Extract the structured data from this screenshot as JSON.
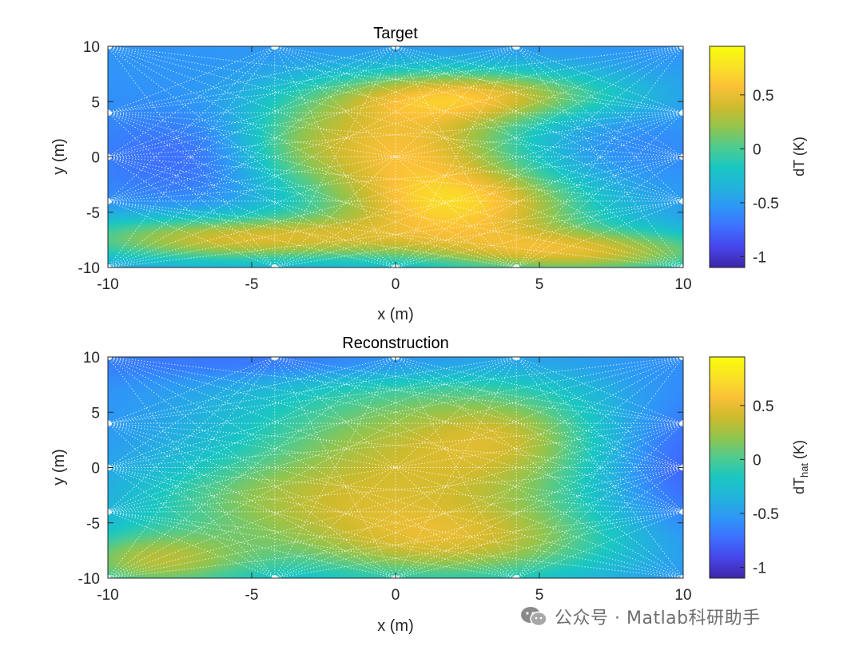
{
  "colors": {
    "colormap": [
      "#3e26a8",
      "#4746eb",
      "#3e70ff",
      "#2f97f7",
      "#22b4dc",
      "#1ac7c2",
      "#4fcb90",
      "#92c54e",
      "#cfbb2e",
      "#fbc038",
      "#f9e226",
      "#f9fb0e"
    ],
    "ray_color": "#ffffff",
    "text_color": "#262626"
  },
  "chart_data": [
    {
      "type": "heatmap",
      "title": "Target",
      "xlabel": "x (m)",
      "ylabel": "y (m)",
      "xlim": [
        -10,
        10
      ],
      "ylim": [
        -10,
        10
      ],
      "xticks": [
        -10,
        -5,
        0,
        5,
        10
      ],
      "yticks": [
        -10,
        -5,
        0,
        5,
        10
      ],
      "xtick_labels": [
        "-10",
        "-5",
        "0",
        "5",
        "10"
      ],
      "ytick_labels": [
        "-10",
        "-5",
        "0",
        "5",
        "10"
      ],
      "clim": [
        -1.1,
        0.95
      ],
      "colorbar": {
        "label": "dT (K)",
        "label_base": "dT",
        "label_sub": "",
        "label_suffix": " (K)",
        "ticks": [
          -1,
          -0.5,
          0,
          0.5
        ],
        "tick_labels": [
          "-1",
          "-0.5",
          "0",
          "0.5"
        ]
      },
      "field": {
        "background": -0.55,
        "blobs": [
          {
            "x": 0.0,
            "y": 1.0,
            "sx": 3.2,
            "sy": 3.4,
            "a": 1.05
          },
          {
            "x": 2.8,
            "y": 5.6,
            "sx": 3.6,
            "sy": 1.7,
            "a": 0.85
          },
          {
            "x": 2.5,
            "y": -4.5,
            "sx": 3.2,
            "sy": 2.4,
            "a": 1.0
          },
          {
            "x": -5.5,
            "y": -7.4,
            "sx": 4.5,
            "sy": 1.5,
            "a": 0.95
          },
          {
            "x": 6.5,
            "y": -8.6,
            "sx": 3.8,
            "sy": 1.5,
            "a": 0.9
          },
          {
            "x": -6.5,
            "y": 0.0,
            "sx": 2.8,
            "sy": 3.0,
            "a": -0.25
          },
          {
            "x": 7.5,
            "y": 0.5,
            "sx": 2.2,
            "sy": 3.0,
            "a": -0.1
          },
          {
            "x": -3.8,
            "y": 1.0,
            "sx": 1.4,
            "sy": 3.0,
            "a": 0.25
          }
        ]
      },
      "transducers": [
        [
          -10,
          10
        ],
        [
          -4.2,
          10
        ],
        [
          0,
          10
        ],
        [
          4.2,
          10
        ],
        [
          10,
          10
        ],
        [
          -10,
          4
        ],
        [
          10,
          4
        ],
        [
          -10,
          0
        ],
        [
          10,
          0
        ],
        [
          -10,
          -4
        ],
        [
          10,
          -4
        ],
        [
          -10,
          -10
        ],
        [
          -4.2,
          -10
        ],
        [
          0,
          -10
        ],
        [
          4.2,
          -10
        ],
        [
          10,
          -10
        ]
      ]
    },
    {
      "type": "heatmap",
      "title": "Reconstruction",
      "xlabel": "x (m)",
      "ylabel": "y (m)",
      "xlim": [
        -10,
        10
      ],
      "ylim": [
        -10,
        10
      ],
      "xticks": [
        -10,
        -5,
        0,
        5,
        10
      ],
      "yticks": [
        -10,
        -5,
        0,
        5,
        10
      ],
      "xtick_labels": [
        "-10",
        "-5",
        "0",
        "5",
        "10"
      ],
      "ytick_labels": [
        "-10",
        "-5",
        "0",
        "5",
        "10"
      ],
      "clim": [
        -1.1,
        0.95
      ],
      "colorbar": {
        "label": "dT_hat (K)",
        "label_base": "dT",
        "label_sub": "hat",
        "label_suffix": " (K)",
        "ticks": [
          -1,
          -0.5,
          0,
          0.5
        ],
        "tick_labels": [
          "-1",
          "-0.5",
          "0",
          "0.5"
        ]
      },
      "field": {
        "background": -0.6,
        "blobs": [
          {
            "x": 1.0,
            "y": 0.5,
            "sx": 5.0,
            "sy": 6.5,
            "a": 0.95
          },
          {
            "x": 2.0,
            "y": -7.0,
            "sx": 4.5,
            "sy": 2.5,
            "a": 0.55
          },
          {
            "x": -8.5,
            "y": -8.5,
            "sx": 2.5,
            "sy": 2.0,
            "a": 0.8
          },
          {
            "x": 4.0,
            "y": 3.0,
            "sx": 2.0,
            "sy": 2.5,
            "a": 0.25
          },
          {
            "x": -5.5,
            "y": -3.0,
            "sx": 3.5,
            "sy": 2.5,
            "a": 0.35
          },
          {
            "x": 10.0,
            "y": 0.0,
            "sx": 2.2,
            "sy": 4.5,
            "a": -0.35
          },
          {
            "x": -2.0,
            "y": 9.5,
            "sx": 5.0,
            "sy": 1.2,
            "a": -0.3
          }
        ]
      },
      "transducers": [
        [
          -10,
          10
        ],
        [
          -4.2,
          10
        ],
        [
          0,
          10
        ],
        [
          4.2,
          10
        ],
        [
          10,
          10
        ],
        [
          -10,
          4
        ],
        [
          10,
          4
        ],
        [
          -10,
          0
        ],
        [
          10,
          0
        ],
        [
          -10,
          -4
        ],
        [
          10,
          -4
        ],
        [
          -10,
          -10
        ],
        [
          -4.2,
          -10
        ],
        [
          0,
          -10
        ],
        [
          4.2,
          -10
        ],
        [
          10,
          -10
        ]
      ]
    }
  ],
  "watermark": {
    "icon": "wechat-icon",
    "text": "公众号 · Matlab科研助手"
  }
}
